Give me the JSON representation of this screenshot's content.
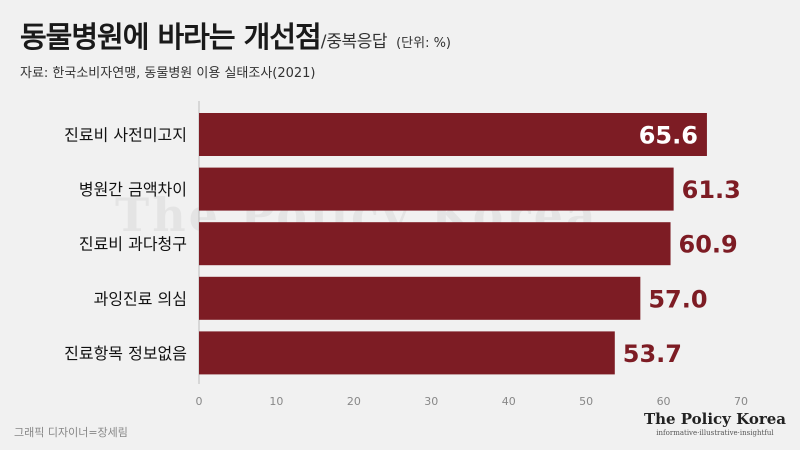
{
  "header": {
    "title": "동물병원에 바라는 개선점",
    "slash": "/",
    "subtitle": "중복응답",
    "unit": "(단위: %)",
    "source": "자료: 한국소비자연맹, 동물병원 이용 실태조사(2021)"
  },
  "footer": {
    "credit": "그래픽 디자이너=장세림",
    "brand": "The Policy Korea",
    "tagline": "informative·illustrative·insightful"
  },
  "watermark": {
    "text": "The Policy Korea",
    "tagline": "informative·illustrative·insightful"
  },
  "colors": {
    "bar": "#7d1c24",
    "value_dark": "#7d1c24",
    "value_light": "#ffffff"
  },
  "chart_data": {
    "type": "bar",
    "orientation": "horizontal",
    "categories": [
      "진료비 사전미고지",
      "병원간 금액차이",
      "진료비 과다청구",
      "과잉진료 의심",
      "진료항목 정보없음"
    ],
    "values": [
      65.6,
      61.3,
      60.9,
      57.0,
      53.7
    ],
    "value_labels": [
      "65.6",
      "61.3",
      "60.9",
      "57.0",
      "53.7"
    ],
    "xlim": [
      0,
      70
    ],
    "xticks": [
      "0",
      "10",
      "20",
      "30",
      "40",
      "50",
      "60",
      "70"
    ],
    "grid": false
  }
}
